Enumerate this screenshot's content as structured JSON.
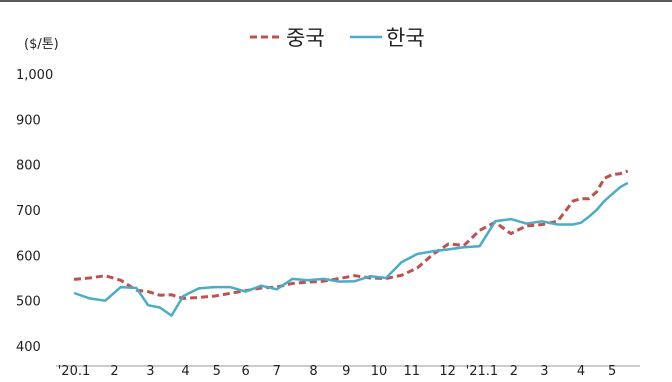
{
  "chart_data": {
    "type": "line",
    "unit_label": "($/톤)",
    "y_ticks": [
      "1,000",
      "900",
      "800",
      "700",
      "600",
      "500",
      "400"
    ],
    "x_ticks": [
      "'20.1",
      "2",
      "3",
      "4",
      "5",
      "6",
      "7",
      "8",
      "9",
      "10",
      "11",
      "12",
      "'21.1",
      "2",
      "3",
      "4",
      "5"
    ],
    "ylim": [
      400,
      1000
    ],
    "grid": false,
    "legend_position": "top-center",
    "x_unit": "week index (2020-01 to 2021-05)",
    "series": [
      {
        "name": "중국",
        "style": "dashed",
        "color": "#c0504d",
        "x": [
          0,
          2,
          4,
          6,
          8,
          9.5,
          11,
          12.5,
          14,
          16,
          18,
          20,
          22,
          24,
          26,
          28,
          30,
          32,
          34,
          36,
          38,
          40,
          42,
          44,
          46,
          48,
          50,
          52,
          54,
          56,
          58,
          60,
          62,
          64,
          65,
          66,
          67,
          68,
          69,
          70,
          71
        ],
        "values": [
          547,
          550,
          555,
          545,
          523,
          520,
          512,
          513,
          505,
          507,
          510,
          516,
          522,
          528,
          530,
          538,
          541,
          543,
          549,
          555,
          550,
          549,
          556,
          572,
          602,
          625,
          622,
          655,
          673,
          648,
          665,
          668,
          675,
          720,
          725,
          725,
          740,
          770,
          778,
          780,
          786
        ]
      },
      {
        "name": "한국",
        "style": "solid",
        "color": "#4bacc6",
        "x": [
          0,
          2,
          4,
          6,
          8,
          9.5,
          11,
          12.5,
          14,
          16,
          18,
          20,
          22,
          24,
          26,
          28,
          30,
          32,
          34,
          36,
          38,
          40,
          42,
          44,
          46,
          48,
          50,
          52,
          54,
          56,
          58,
          60,
          62,
          64,
          65,
          66,
          67,
          68,
          69,
          70,
          71
        ],
        "values": [
          517,
          505,
          500,
          530,
          528,
          490,
          485,
          467,
          510,
          527,
          530,
          530,
          520,
          533,
          525,
          548,
          545,
          548,
          542,
          543,
          554,
          550,
          585,
          603,
          609,
          613,
          618,
          620,
          675,
          680,
          670,
          675,
          668,
          668,
          672,
          685,
          700,
          720,
          735,
          750,
          760
        ]
      }
    ]
  }
}
